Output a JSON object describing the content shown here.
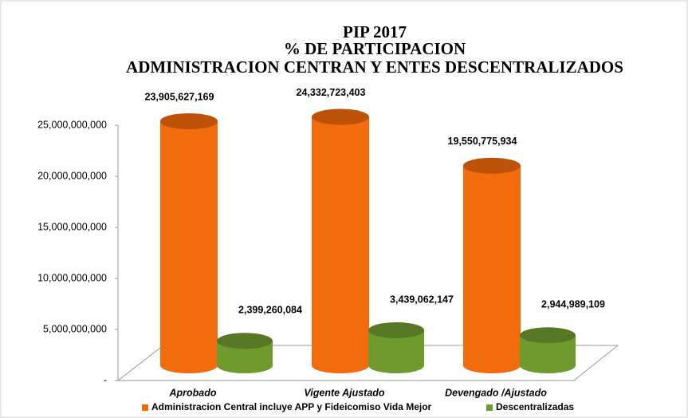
{
  "chart_data": {
    "type": "bar3d",
    "title": [
      "PIP 2017",
      "% DE PARTICIPACION",
      "ADMINISTRACION CENTRAN Y ENTES DESCENTRALIZADOS"
    ],
    "categories": [
      "Aprobado",
      "Vigente Ajustado",
      "Devengado /Ajustado"
    ],
    "series": [
      {
        "name": "Administracion Central incluye APP y Fideicomiso Vida Mejor",
        "color": "#f26b0c",
        "values": [
          23905627169,
          24332723403,
          19550775934
        ],
        "value_labels": [
          "23,905,627,169",
          "24,332,723,403",
          "19,550,775,934"
        ]
      },
      {
        "name": "Descentralizadas",
        "color": "#6f9a2e",
        "values": [
          2399260084,
          3439062147,
          2944989109
        ],
        "value_labels": [
          "2,399,260,084",
          "3,439,062,147",
          "2,944,989,109"
        ]
      }
    ],
    "ylim": [
      0,
      25000000000
    ],
    "yticks": [
      {
        "value": 0,
        "label": "-"
      },
      {
        "value": 5000000000,
        "label": "5,000,000,000"
      },
      {
        "value": 10000000000,
        "label": "10,000,000,000"
      },
      {
        "value": 15000000000,
        "label": "15,000,000,000"
      },
      {
        "value": 20000000000,
        "label": "20,000,000,000"
      },
      {
        "value": 25000000000,
        "label": "25,000,000,000"
      }
    ]
  }
}
